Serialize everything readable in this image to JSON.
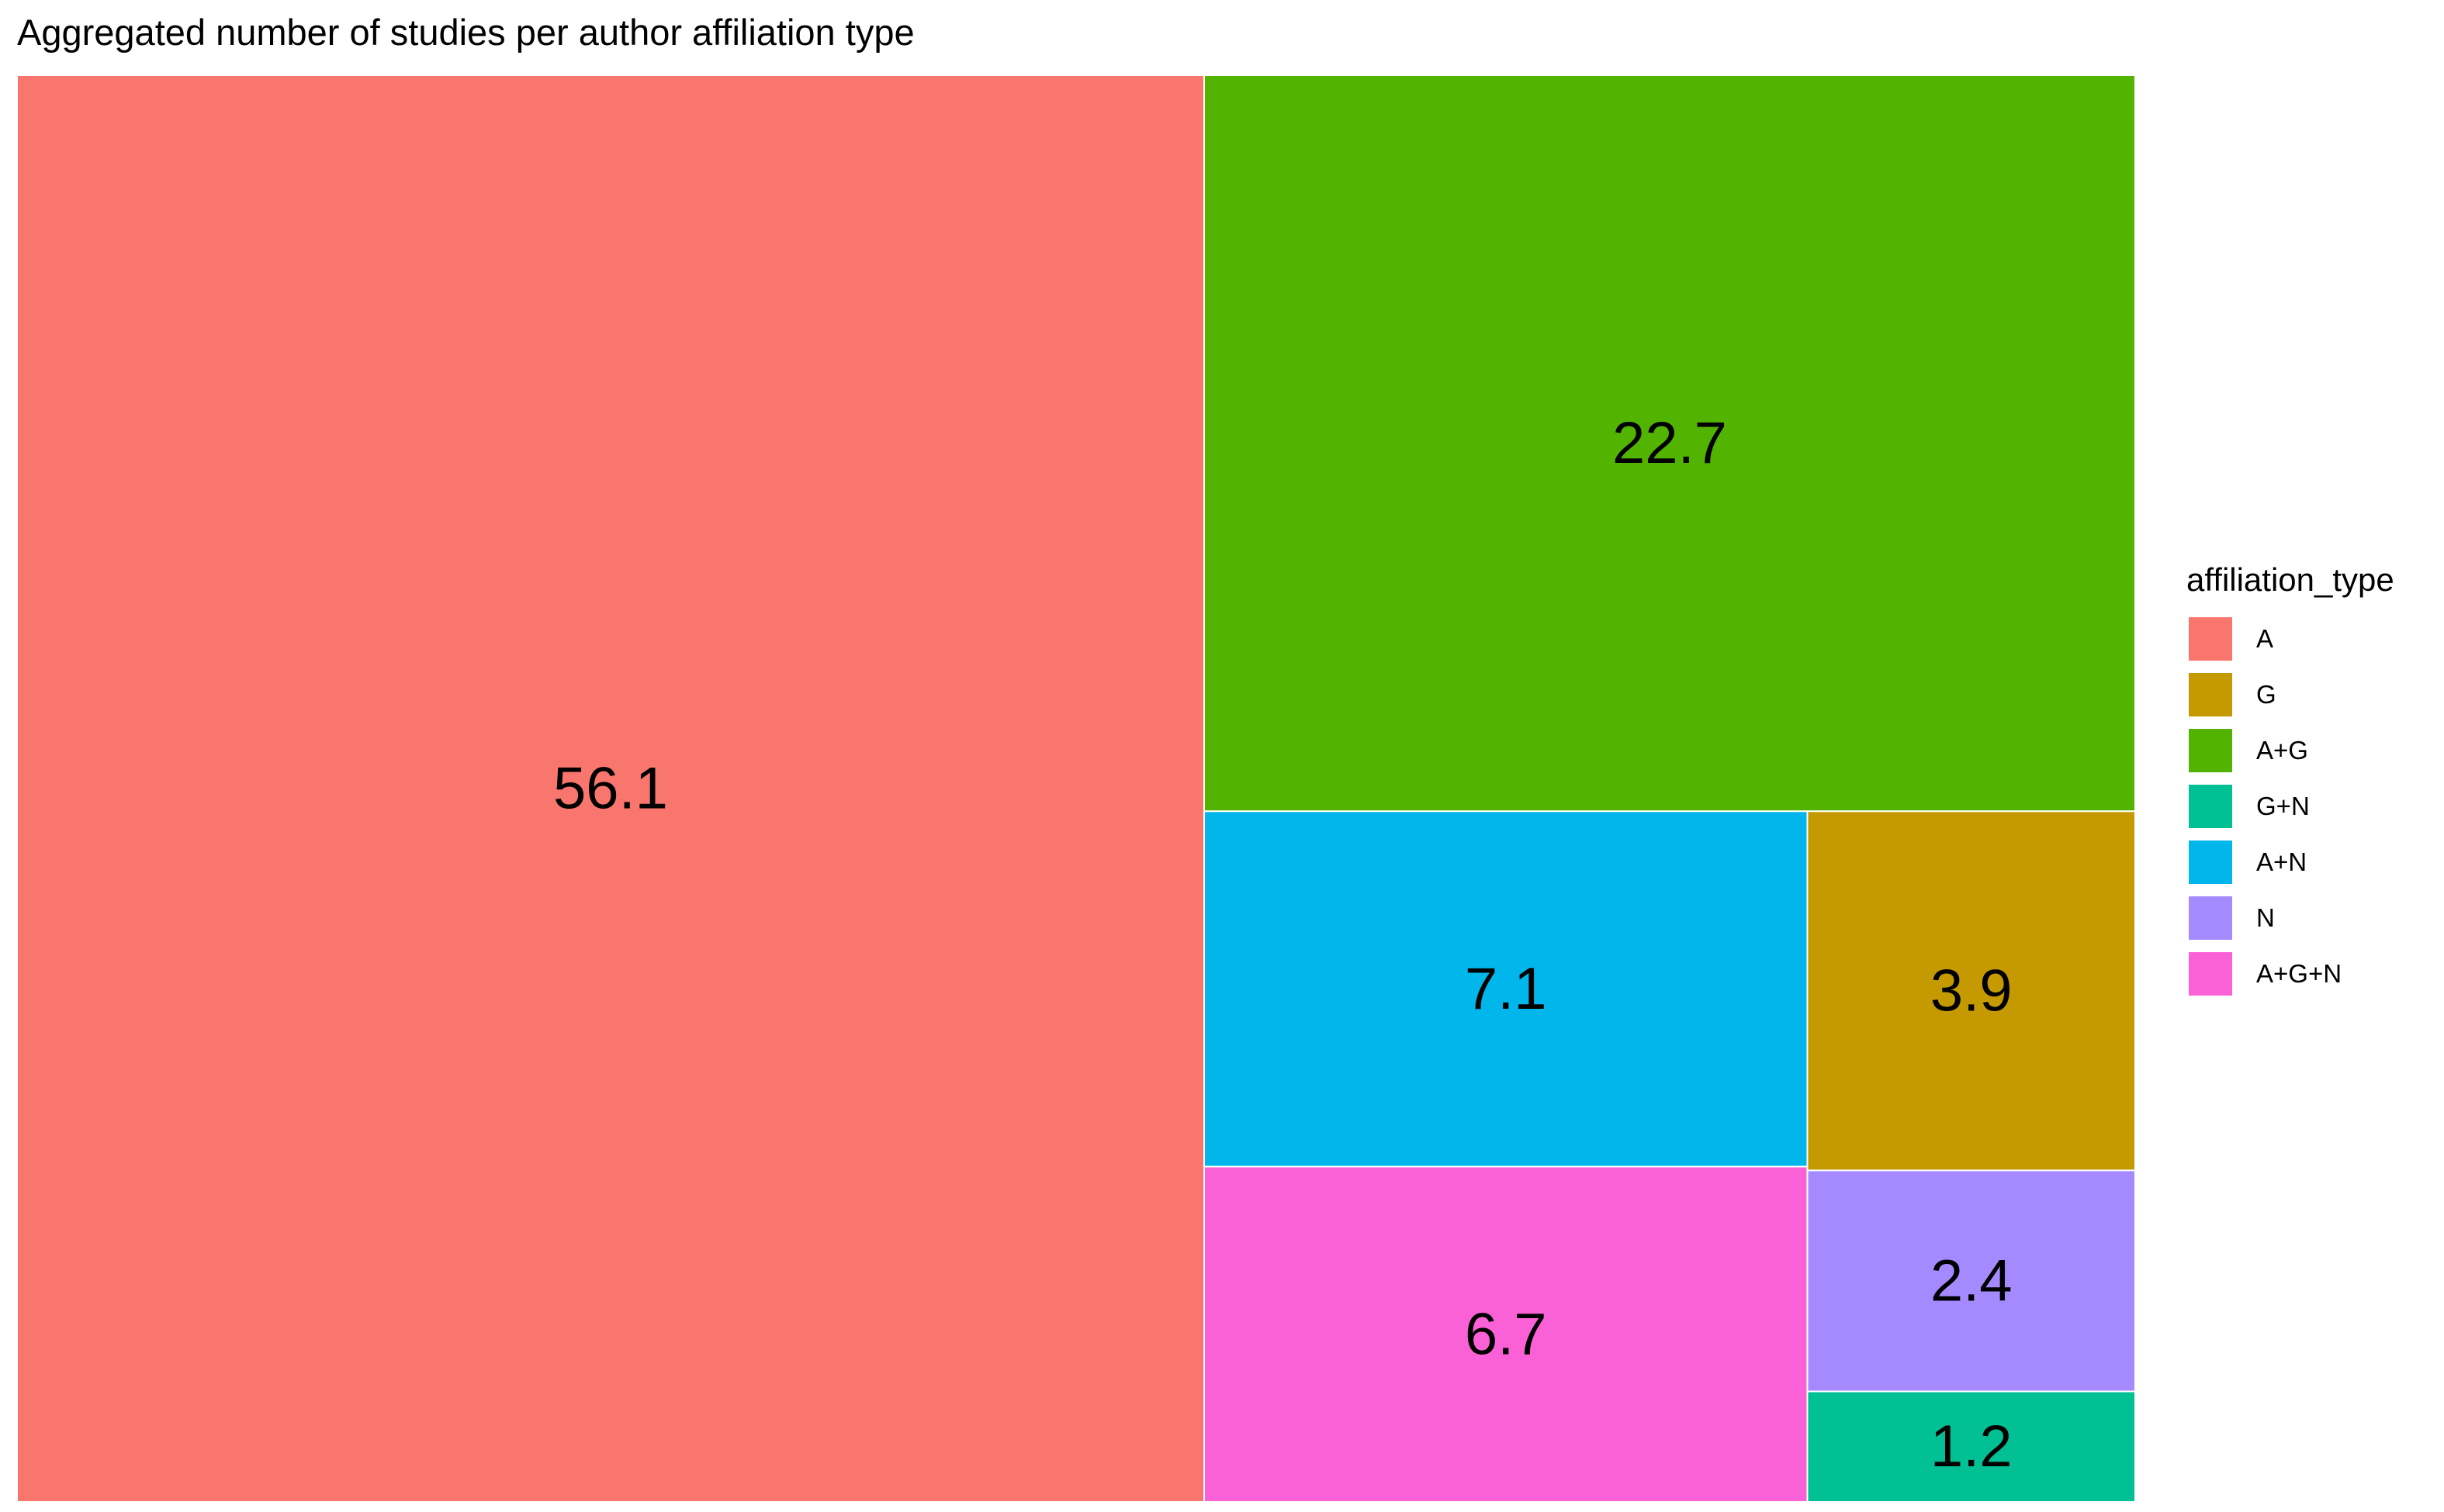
{
  "chart_data": {
    "type": "treemap",
    "title": "Aggregated number of studies per author affiliation type",
    "legend": {
      "title": "affiliation_type",
      "placement": "right"
    },
    "categories": [
      "A",
      "G",
      "A+G",
      "G+N",
      "A+N",
      "N",
      "A+G+N"
    ],
    "values": [
      56.1,
      3.9,
      22.7,
      1.2,
      7.1,
      2.4,
      6.7
    ],
    "labels": [
      "56.1",
      "3.9",
      "22.7",
      "1.2",
      "7.1",
      "2.4",
      "6.7"
    ],
    "colors": [
      "#F8766D",
      "#C49A00",
      "#53B400",
      "#00C094",
      "#00B6EB",
      "#A58AFF",
      "#FB61D7"
    ]
  }
}
